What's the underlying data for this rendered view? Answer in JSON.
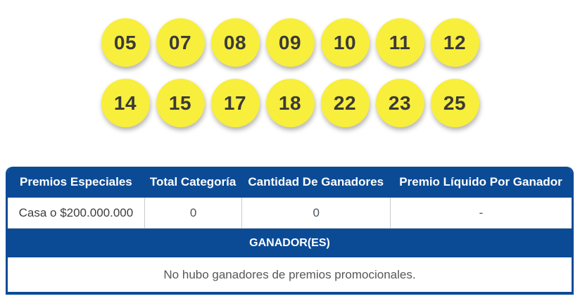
{
  "balls": {
    "rows": [
      [
        "05",
        "07",
        "08",
        "09",
        "10",
        "11",
        "12"
      ],
      [
        "14",
        "15",
        "17",
        "18",
        "22",
        "23",
        "25"
      ]
    ]
  },
  "table": {
    "headers": [
      "Premios Especiales",
      "Total Categoría",
      "Cantidad De Ganadores",
      "Premio Líquido Por Ganador"
    ],
    "rows": [
      {
        "premio": "Casa o $200.000.000",
        "total_categoria": "0",
        "cantidad_ganadores": "0",
        "premio_liquido": "-"
      }
    ],
    "winners_header": "GANADOR(ES)",
    "no_winners_message": "No hubo ganadores de premios promocionales."
  },
  "colors": {
    "primary_blue": "#0B4B96",
    "ball_yellow": "#F8EE3C",
    "ball_text": "#3A3A3A",
    "divider_gray": "#C9C9C9",
    "muted_text": "#575757"
  }
}
